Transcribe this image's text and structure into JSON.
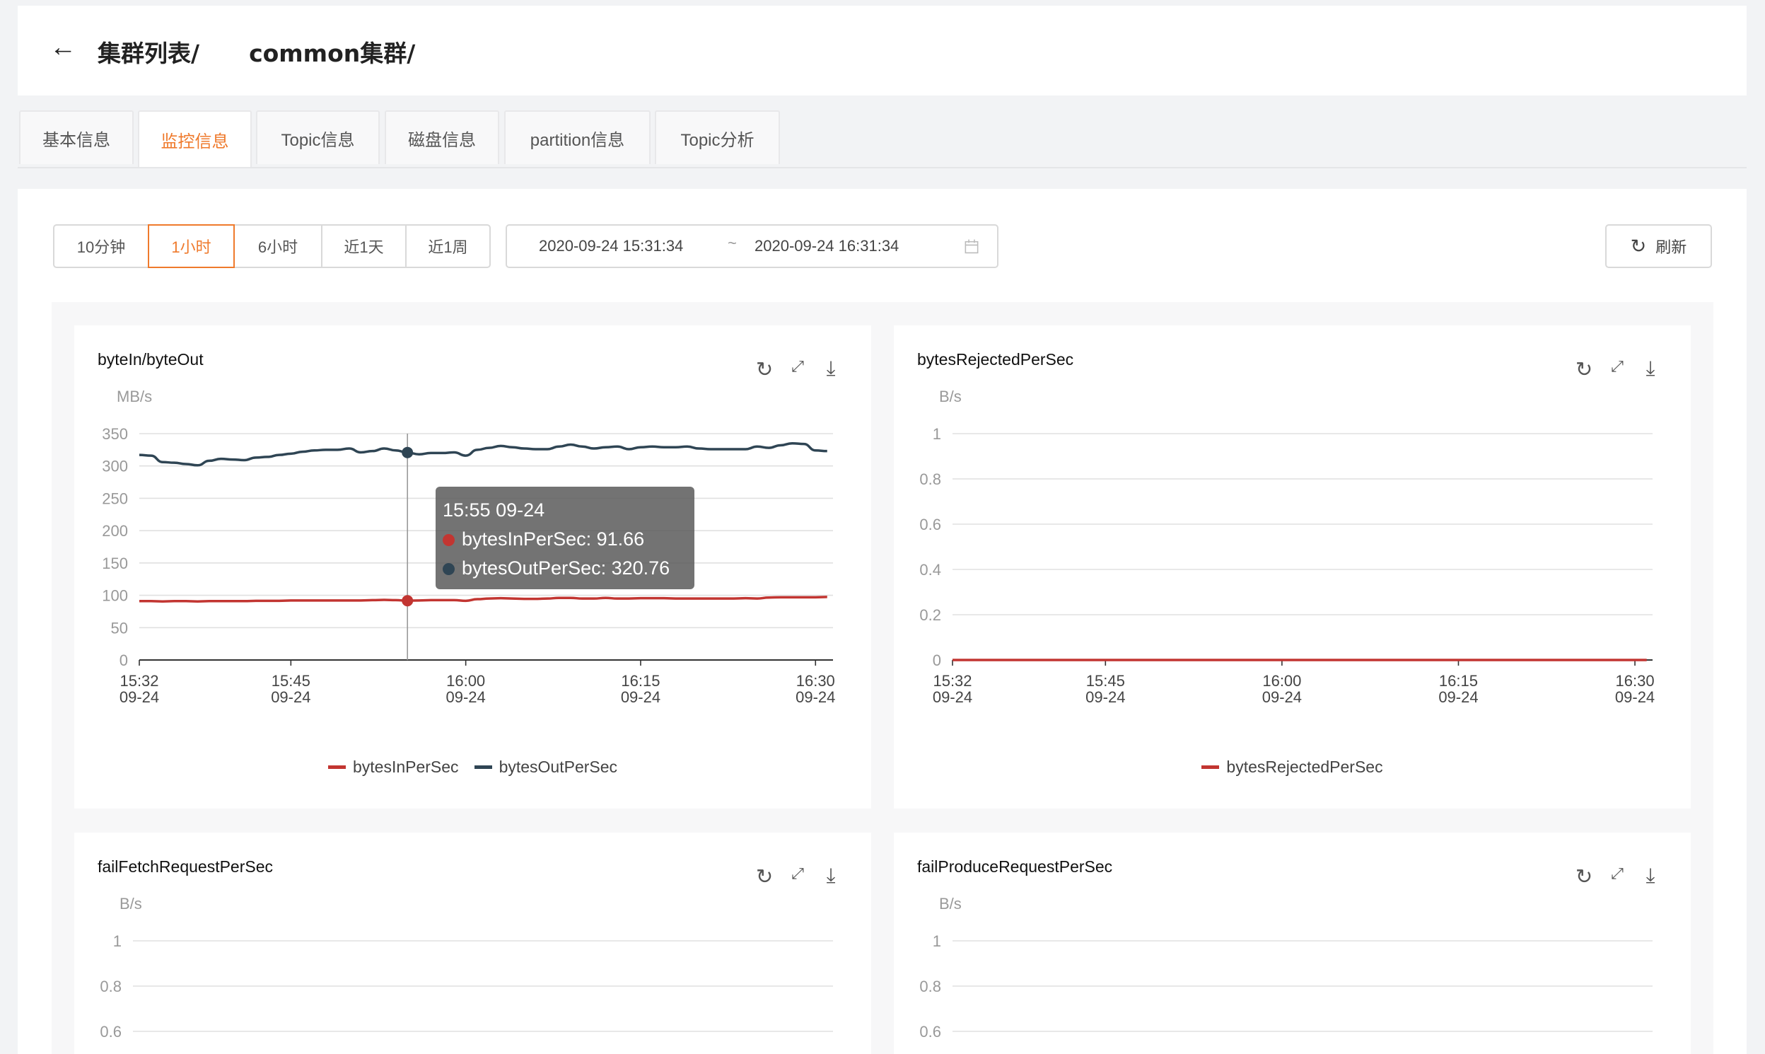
{
  "header": {
    "back_icon": "arrow-left-icon",
    "breadcrumb_1": "集群列表/",
    "breadcrumb_2": "common集群/"
  },
  "tabs": [
    {
      "label": "基本信息"
    },
    {
      "label": "监控信息",
      "active": true
    },
    {
      "label": "Topic信息"
    },
    {
      "label": "磁盘信息"
    },
    {
      "label": "partition信息"
    },
    {
      "label": "Topic分析"
    }
  ],
  "time_ranges": [
    {
      "label": "10分钟"
    },
    {
      "label": "1小时",
      "active": true
    },
    {
      "label": "6小时"
    },
    {
      "label": "近1天"
    },
    {
      "label": "近1周"
    }
  ],
  "date_range": {
    "start": "2020-09-24 15:31:34",
    "separator": "~",
    "end": "2020-09-24 16:31:34",
    "icon": "calendar-icon"
  },
  "refresh": {
    "label": "刷新",
    "icon": "refresh-icon"
  },
  "colors": {
    "accent": "#ef7a2c",
    "series_in": "#c23531",
    "series_out": "#2f4554"
  },
  "card_icons": [
    "refresh-icon",
    "fullscreen-icon",
    "download-icon"
  ],
  "chart_data": [
    {
      "type": "line",
      "title": "byteIn/byteOut",
      "ylabel": "MB/s",
      "ylim": [
        0,
        350
      ],
      "yticks": [
        "0",
        "50",
        "100",
        "150",
        "200",
        "250",
        "300",
        "350"
      ],
      "xlim": [
        "15:32",
        "16:31"
      ],
      "xticks": [
        {
          "t": "15:32",
          "d": "09-24"
        },
        {
          "t": "15:45",
          "d": "09-24"
        },
        {
          "t": "16:00",
          "d": "09-24"
        },
        {
          "t": "16:15",
          "d": "09-24"
        },
        {
          "t": "16:30",
          "d": "09-24"
        }
      ],
      "legend": "bottom",
      "grid": true,
      "series": [
        {
          "name": "bytesInPerSec",
          "color": "#c23531",
          "values": [
            91,
            91,
            90.5,
            91,
            91,
            90.5,
            91,
            91,
            91,
            91,
            91.5,
            91.5,
            91.5,
            92,
            92,
            92,
            92,
            92,
            92,
            92,
            92.5,
            93,
            92.5,
            91.66,
            92,
            92.5,
            92.5,
            92.5,
            91.5,
            94,
            95,
            95.5,
            95,
            94.5,
            94.5,
            95,
            96,
            96,
            95,
            95,
            96,
            95,
            95,
            95.5,
            95.5,
            95.5,
            95,
            95,
            95,
            95,
            95,
            95,
            95.5,
            95,
            96.5,
            97,
            97,
            97,
            97,
            97.5
          ]
        },
        {
          "name": "bytesOutPerSec",
          "color": "#2f4554",
          "values": [
            317,
            316,
            306,
            305,
            303,
            301,
            308,
            311,
            310,
            309,
            313,
            314,
            317,
            319,
            322,
            324,
            325,
            325,
            327,
            321,
            323,
            327,
            324,
            320.76,
            318,
            320,
            320,
            321,
            316,
            325,
            328,
            331,
            329,
            327,
            326,
            326,
            330,
            333,
            330,
            327,
            329,
            330,
            326,
            329,
            330,
            329,
            329,
            330,
            327,
            326,
            326,
            326,
            326,
            330,
            328,
            332,
            335,
            334,
            324,
            323
          ]
        }
      ],
      "tooltip": {
        "time": "15:55 09-24",
        "index": 23,
        "items": [
          {
            "label": "bytesInPerSec: 91.66"
          },
          {
            "label": "bytesOutPerSec: 320.76"
          }
        ]
      }
    },
    {
      "type": "line",
      "title": "bytesRejectedPerSec",
      "ylabel": "B/s",
      "ylim": [
        0,
        1
      ],
      "yticks": [
        "0",
        "0.2",
        "0.4",
        "0.6",
        "0.8",
        "1"
      ],
      "xlim": [
        "15:32",
        "16:31"
      ],
      "xticks": [
        {
          "t": "15:32",
          "d": "09-24"
        },
        {
          "t": "15:45",
          "d": "09-24"
        },
        {
          "t": "16:00",
          "d": "09-24"
        },
        {
          "t": "16:15",
          "d": "09-24"
        },
        {
          "t": "16:30",
          "d": "09-24"
        }
      ],
      "legend": "bottom",
      "grid": true,
      "series": [
        {
          "name": "bytesRejectedPerSec",
          "color": "#c23531",
          "values": [
            0,
            0,
            0,
            0,
            0,
            0,
            0,
            0,
            0,
            0,
            0,
            0,
            0,
            0,
            0,
            0,
            0,
            0,
            0,
            0,
            0,
            0,
            0,
            0,
            0,
            0,
            0,
            0,
            0,
            0,
            0,
            0,
            0,
            0,
            0,
            0,
            0,
            0,
            0,
            0,
            0,
            0,
            0,
            0,
            0,
            0,
            0,
            0,
            0,
            0,
            0,
            0,
            0,
            0,
            0,
            0,
            0,
            0,
            0,
            0
          ]
        }
      ]
    },
    {
      "type": "line",
      "title": "failFetchRequestPerSec",
      "ylabel": "B/s",
      "ylim": [
        0,
        1
      ],
      "yticks": [
        "0.6",
        "0.8",
        "1"
      ],
      "grid": true,
      "series": []
    },
    {
      "type": "line",
      "title": "failProduceRequestPerSec",
      "ylabel": "B/s",
      "ylim": [
        0,
        1
      ],
      "yticks": [
        "0.6",
        "0.8",
        "1"
      ],
      "grid": true,
      "series": []
    }
  ]
}
